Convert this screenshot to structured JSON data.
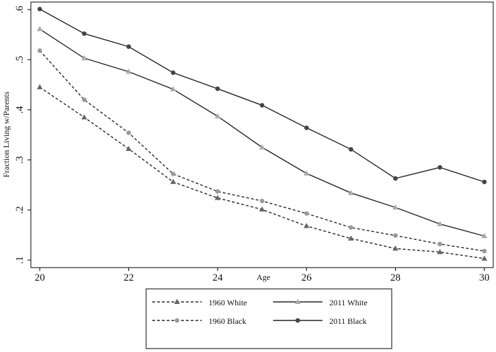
{
  "chart_data": {
    "type": "line",
    "title": "",
    "xlabel": "Age",
    "ylabel": "Fraction Living w/Parents",
    "xlim": [
      19.8,
      30.2
    ],
    "ylim": [
      0.085,
      0.615
    ],
    "x_ticks": [
      20,
      22,
      24,
      26,
      28,
      30
    ],
    "x_tick_labels": [
      "20",
      "22",
      "24",
      "26",
      "28",
      "30"
    ],
    "y_ticks": [
      0.1,
      0.2,
      0.3,
      0.4,
      0.5,
      0.6
    ],
    "y_tick_labels": [
      ".1",
      ".2",
      ".3",
      ".4",
      ".5",
      ".6"
    ],
    "grid": false,
    "legend_position": "bottom",
    "x": [
      20,
      21,
      22,
      23,
      24,
      25,
      26,
      27,
      28,
      29,
      30
    ],
    "series": [
      {
        "name": "1960 White",
        "style": "dashed",
        "marker": "triangle",
        "color": "#666666",
        "values": [
          0.445,
          0.385,
          0.322,
          0.256,
          0.224,
          0.201,
          0.168,
          0.143,
          0.123,
          0.116,
          0.103
        ]
      },
      {
        "name": "2011 White",
        "style": "solid",
        "marker": "triangle",
        "color": "#aaaaaa",
        "values": [
          0.561,
          0.503,
          0.476,
          0.441,
          0.387,
          0.325,
          0.273,
          0.234,
          0.205,
          0.172,
          0.148
        ]
      },
      {
        "name": "1960 Black",
        "style": "dashed",
        "marker": "circle",
        "color": "#999999",
        "values": [
          0.518,
          0.42,
          0.354,
          0.272,
          0.237,
          0.218,
          0.193,
          0.165,
          0.149,
          0.132,
          0.118
        ]
      },
      {
        "name": "2011 Black",
        "style": "solid",
        "marker": "circle",
        "color": "#444444",
        "values": [
          0.601,
          0.552,
          0.526,
          0.474,
          0.442,
          0.409,
          0.364,
          0.321,
          0.263,
          0.285,
          0.256
        ]
      }
    ]
  }
}
